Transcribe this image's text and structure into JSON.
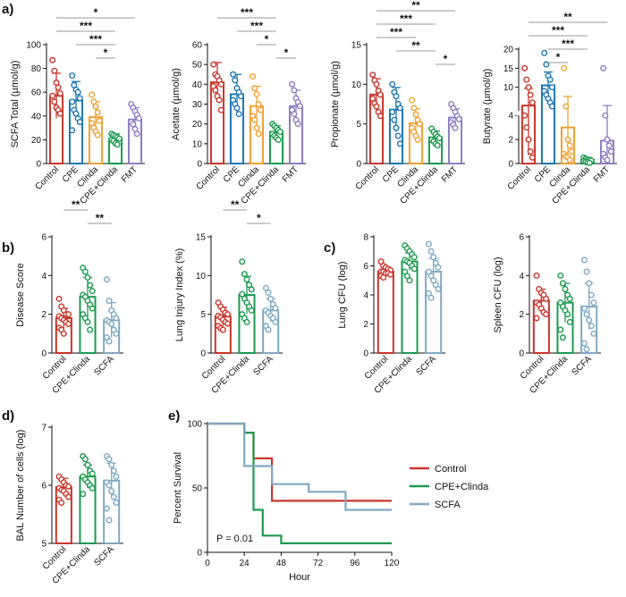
{
  "colors": {
    "Control": "#c8362c",
    "CPE": "#1e77b4",
    "Clinda": "#f2a133",
    "CPE+Clinda": "#1d9a4f",
    "FMT": "#8e7cc3",
    "SCFA": "#7fa8c4"
  },
  "panel_letters": [
    "a)",
    "b)",
    "c)",
    "d)",
    "e)"
  ],
  "chart_data": [
    {
      "id": "a1",
      "type": "bar",
      "panel": "a)",
      "ylabel": "SCFA Total (µmol/g)",
      "categories": [
        "Control",
        "CPE",
        "Clinda",
        "CPE+Clinda",
        "FMT"
      ],
      "values": [
        57,
        53,
        39,
        21,
        37
      ],
      "errors": [
        19,
        16,
        13,
        4,
        10
      ],
      "ylim": [
        0,
        100
      ],
      "yticks": [
        0,
        20,
        40,
        60,
        80,
        100
      ],
      "points": [
        [
          87,
          78,
          68,
          64,
          59,
          57,
          52,
          47,
          45,
          42
        ],
        [
          74,
          66,
          62,
          60,
          55,
          52,
          45,
          42,
          38,
          35,
          28
        ],
        [
          58,
          52,
          48,
          43,
          36,
          34,
          30,
          27,
          24
        ],
        [
          25,
          24,
          23,
          22,
          21,
          20,
          19,
          17,
          16
        ],
        [
          50,
          47,
          44,
          41,
          38,
          35,
          33,
          29,
          25
        ]
      ],
      "significance": [
        {
          "from": 0,
          "to": 4,
          "label": "*"
        },
        {
          "from": 0,
          "to": 3,
          "label": "***"
        },
        {
          "from": 1,
          "to": 3,
          "label": "***"
        },
        {
          "from": 2,
          "to": 3,
          "label": "*"
        }
      ]
    },
    {
      "id": "a2",
      "type": "bar",
      "panel": "",
      "ylabel": "Acetate (µmol/g)",
      "categories": [
        "Control",
        "CPE",
        "Clinda",
        "CPE+Clinda",
        "FMT"
      ],
      "values": [
        41,
        35,
        29,
        16,
        29
      ],
      "errors": [
        10,
        10,
        10,
        3,
        8
      ],
      "ylim": [
        0,
        60
      ],
      "yticks": [
        0,
        10,
        20,
        30,
        40,
        50,
        60
      ],
      "points": [
        [
          50,
          45,
          44,
          42,
          40,
          39,
          37,
          34,
          32,
          27
        ],
        [
          45,
          42,
          38,
          36,
          34,
          32,
          30,
          28,
          25
        ],
        [
          44,
          38,
          35,
          30,
          27,
          24,
          22,
          18,
          15
        ],
        [
          20,
          19,
          18,
          17,
          16,
          15,
          14,
          13,
          12
        ],
        [
          40,
          37,
          33,
          31,
          29,
          27,
          25,
          22,
          20
        ]
      ],
      "significance": [
        {
          "from": 0,
          "to": 3,
          "label": "***"
        },
        {
          "from": 1,
          "to": 3,
          "label": "***"
        },
        {
          "from": 2,
          "to": 3,
          "label": "*"
        },
        {
          "from": 3,
          "to": 4,
          "label": "*"
        }
      ]
    },
    {
      "id": "a3",
      "type": "bar",
      "panel": "",
      "ylabel": "Propionate (µmol/g)",
      "categories": [
        "Control",
        "CPE",
        "Clinda",
        "CPE+Clinda",
        "FMT"
      ],
      "values": [
        8.7,
        6.8,
        5.1,
        3.3,
        5.8
      ],
      "errors": [
        2,
        2.8,
        1.8,
        0.8,
        1.1
      ],
      "ylim": [
        0,
        15
      ],
      "yticks": [
        0,
        5,
        10,
        15
      ],
      "points": [
        [
          11.2,
          10.5,
          10,
          9.2,
          8.7,
          8.2,
          7.6,
          7.2,
          6.5,
          6
        ],
        [
          10,
          9,
          8.5,
          7.5,
          7,
          6.5,
          5.5,
          4.5,
          3.5,
          2.5
        ],
        [
          8,
          7,
          6.2,
          5.5,
          5,
          4.5,
          4,
          3.5,
          3
        ],
        [
          4.4,
          4,
          3.7,
          3.4,
          3.2,
          3,
          2.8,
          2.5,
          2.3
        ],
        [
          7.5,
          7,
          6.5,
          6,
          5.6,
          5.2,
          4.9,
          4.5
        ]
      ],
      "significance": [
        {
          "from": 0,
          "to": 4,
          "label": "**"
        },
        {
          "from": 0,
          "to": 3,
          "label": "***"
        },
        {
          "from": 0,
          "to": 2,
          "label": "***"
        },
        {
          "from": 1,
          "to": 3,
          "label": "**"
        },
        {
          "from": 3,
          "to": 4,
          "label": "*"
        }
      ]
    },
    {
      "id": "a4",
      "type": "bar",
      "panel": "",
      "ylabel": "Butyrate (µmol/g)",
      "categories": [
        "Control",
        "CPE",
        "Clinda",
        "CPE+Clinda",
        "FMT"
      ],
      "values": [
        5.2,
        10.5,
        3.0,
        0.3,
        1.9
      ],
      "errors": [
        4.5,
        3.5,
        4.6,
        0.2,
        3.3
      ],
      "break_axis": true,
      "ylim": [
        0,
        20
      ],
      "yticks": [
        0,
        2,
        4,
        10,
        15,
        20
      ],
      "points": [
        [
          15,
          12,
          10,
          8,
          6,
          4,
          3,
          2,
          1,
          0.5
        ],
        [
          19,
          16,
          13,
          12,
          10,
          9,
          8,
          7,
          6,
          5
        ],
        [
          15,
          5,
          2,
          1.5,
          1,
          0.8,
          0.6,
          0.5,
          0.3
        ],
        [
          0.5,
          0.4,
          0.35,
          0.3,
          0.25,
          0.2,
          0.15,
          0.1,
          0.05
        ],
        [
          15,
          4,
          2,
          1.5,
          1,
          0.8,
          0.5,
          0.3
        ]
      ],
      "significance": [
        {
          "from": 0,
          "to": 4,
          "label": "**"
        },
        {
          "from": 0,
          "to": 3,
          "label": "***"
        },
        {
          "from": 1,
          "to": 3,
          "label": "***"
        },
        {
          "from": 1,
          "to": 2,
          "label": "*"
        }
      ]
    },
    {
      "id": "b1",
      "type": "bar",
      "panel": "b)",
      "ylabel": "Disease Score",
      "categories": [
        "Control",
        "CPE+Clinda",
        "SCFA"
      ],
      "values": [
        1.8,
        2.9,
        1.7
      ],
      "errors": [
        0.5,
        1.0,
        0.9
      ],
      "ylim": [
        0,
        6
      ],
      "yticks": [
        0,
        2,
        4,
        6
      ],
      "points": [
        [
          2.8,
          2.4,
          2.2,
          2.0,
          2.0,
          1.9,
          1.8,
          1.7,
          1.6,
          1.5,
          1.3,
          1.2,
          1.0
        ],
        [
          4.4,
          4.2,
          3.9,
          3.5,
          3.2,
          3.0,
          2.9,
          2.7,
          2.5,
          2.3,
          2.0,
          1.8,
          1.6,
          1.2
        ],
        [
          3.8,
          2.7,
          2.2,
          2.0,
          1.8,
          1.7,
          1.6,
          1.5,
          1.2,
          1.0,
          0.8,
          0.6
        ]
      ],
      "significance": [
        {
          "from": 0,
          "to": 1,
          "label": "**"
        },
        {
          "from": 1,
          "to": 2,
          "label": "**"
        }
      ]
    },
    {
      "id": "b2",
      "type": "bar",
      "panel": "",
      "ylabel": "Lung Injury Index (%)",
      "categories": [
        "Control",
        "CPE+Clinda",
        "SCFA"
      ],
      "values": [
        4.7,
        7.5,
        5.5
      ],
      "errors": [
        1.2,
        2.4,
        1.5
      ],
      "ylim": [
        0,
        15
      ],
      "yticks": [
        0,
        5,
        10,
        15
      ],
      "points": [
        [
          6.5,
          6.0,
          5.6,
          5.2,
          5.0,
          4.8,
          4.6,
          4.3,
          4.0,
          3.8,
          3.5,
          3.2,
          3.0
        ],
        [
          11.8,
          10.2,
          9.5,
          8.8,
          8.2,
          7.6,
          7.0,
          6.5,
          6.0,
          5.5,
          5.0,
          4.5,
          4.0
        ],
        [
          8.4,
          7.8,
          7.0,
          6.3,
          5.8,
          5.5,
          5.2,
          4.8,
          4.5,
          4.0,
          3.5,
          3.0
        ]
      ],
      "significance": [
        {
          "from": 0,
          "to": 1,
          "label": "**"
        },
        {
          "from": 1,
          "to": 2,
          "label": "*"
        }
      ]
    },
    {
      "id": "c1",
      "type": "bar",
      "panel": "c)",
      "ylabel": "Lung CFU (log)",
      "categories": [
        "Control",
        "CPE+Clinda",
        "SCFA"
      ],
      "values": [
        5.6,
        6.3,
        5.6
      ],
      "errors": [
        0.3,
        0.6,
        0.9
      ],
      "ylim": [
        0,
        8
      ],
      "yticks": [
        0,
        2,
        4,
        6,
        8
      ],
      "points": [
        [
          6.3,
          6.0,
          5.9,
          5.8,
          5.7,
          5.6,
          5.6,
          5.5,
          5.5,
          5.4,
          5.3,
          5.2
        ],
        [
          7.4,
          7.2,
          7.0,
          6.8,
          6.6,
          6.4,
          6.3,
          6.2,
          6.0,
          5.8,
          5.6,
          5.3,
          5.0
        ],
        [
          7.5,
          7.0,
          6.6,
          6.2,
          5.9,
          5.6,
          5.3,
          5.0,
          4.7,
          4.4,
          4.1,
          3.8
        ]
      ],
      "significance": []
    },
    {
      "id": "c2",
      "type": "bar",
      "panel": "",
      "ylabel": "Spleen CFU (log)",
      "categories": [
        "Control",
        "CPE+Clinda",
        "SCFA"
      ],
      "values": [
        2.7,
        2.6,
        2.4
      ],
      "errors": [
        0.6,
        1.0,
        1.2
      ],
      "ylim": [
        0,
        6
      ],
      "yticks": [
        0,
        2,
        4,
        6
      ],
      "points": [
        [
          4.0,
          3.3,
          3.1,
          3.0,
          2.8,
          2.6,
          2.5,
          2.3,
          2.1,
          2.0,
          1.8
        ],
        [
          4.0,
          3.6,
          3.3,
          3.0,
          2.8,
          2.6,
          2.4,
          2.2,
          2.0,
          1.6,
          1.2,
          0.8
        ],
        [
          4.8,
          4.2,
          3.6,
          3.0,
          2.6,
          2.3,
          2.0,
          1.7,
          1.4,
          1.0,
          0.5,
          0.2
        ]
      ],
      "significance": []
    },
    {
      "id": "d1",
      "type": "bar",
      "panel": "d)",
      "ylabel": "BAL Number of cells (log)",
      "categories": [
        "Control",
        "CPE+Clinda",
        "SCFA"
      ],
      "values": [
        5.97,
        6.15,
        6.08
      ],
      "errors": [
        0.15,
        0.2,
        0.3
      ],
      "ylim": [
        5,
        7
      ],
      "yticks": [
        5,
        6,
        7
      ],
      "points": [
        [
          6.15,
          6.1,
          6.05,
          6.0,
          5.98,
          5.95,
          5.92,
          5.9,
          5.85,
          5.8,
          5.75,
          5.7
        ],
        [
          6.5,
          6.45,
          6.35,
          6.25,
          6.2,
          6.15,
          6.1,
          6.05,
          6.0,
          5.95,
          5.85
        ],
        [
          6.5,
          6.45,
          6.35,
          6.25,
          6.15,
          6.05,
          6.0,
          5.9,
          5.8,
          5.7,
          5.6,
          5.4
        ]
      ],
      "significance": []
    },
    {
      "id": "e1",
      "type": "line",
      "panel": "e)",
      "ylabel": "Percent Survival",
      "xlabel": "Hour",
      "xlim": [
        0,
        120
      ],
      "ylim": [
        0,
        100
      ],
      "xticks": [
        0,
        24,
        48,
        72,
        96,
        120
      ],
      "yticks": [
        0,
        50,
        100
      ],
      "annotation": "P = 0.01",
      "legend_position": "top-right",
      "series": [
        {
          "name": "Control",
          "color": "#c8362c",
          "steps": [
            [
              0,
              100
            ],
            [
              24,
              100
            ],
            [
              24,
              93
            ],
            [
              30,
              93
            ],
            [
              30,
              73
            ],
            [
              42,
              73
            ],
            [
              42,
              40
            ],
            [
              120,
              40
            ]
          ]
        },
        {
          "name": "CPE+Clinda",
          "color": "#1d9a4f",
          "steps": [
            [
              0,
              100
            ],
            [
              24,
              100
            ],
            [
              24,
              93
            ],
            [
              30,
              93
            ],
            [
              30,
              33
            ],
            [
              36,
              33
            ],
            [
              36,
              13
            ],
            [
              48,
              13
            ],
            [
              48,
              7
            ],
            [
              120,
              7
            ]
          ]
        },
        {
          "name": "SCFA",
          "color": "#7fa8c4",
          "steps": [
            [
              0,
              100
            ],
            [
              24,
              100
            ],
            [
              24,
              67
            ],
            [
              42,
              67
            ],
            [
              42,
              53
            ],
            [
              66,
              53
            ],
            [
              66,
              47
            ],
            [
              90,
              47
            ],
            [
              90,
              33
            ],
            [
              120,
              33
            ]
          ]
        }
      ]
    }
  ]
}
